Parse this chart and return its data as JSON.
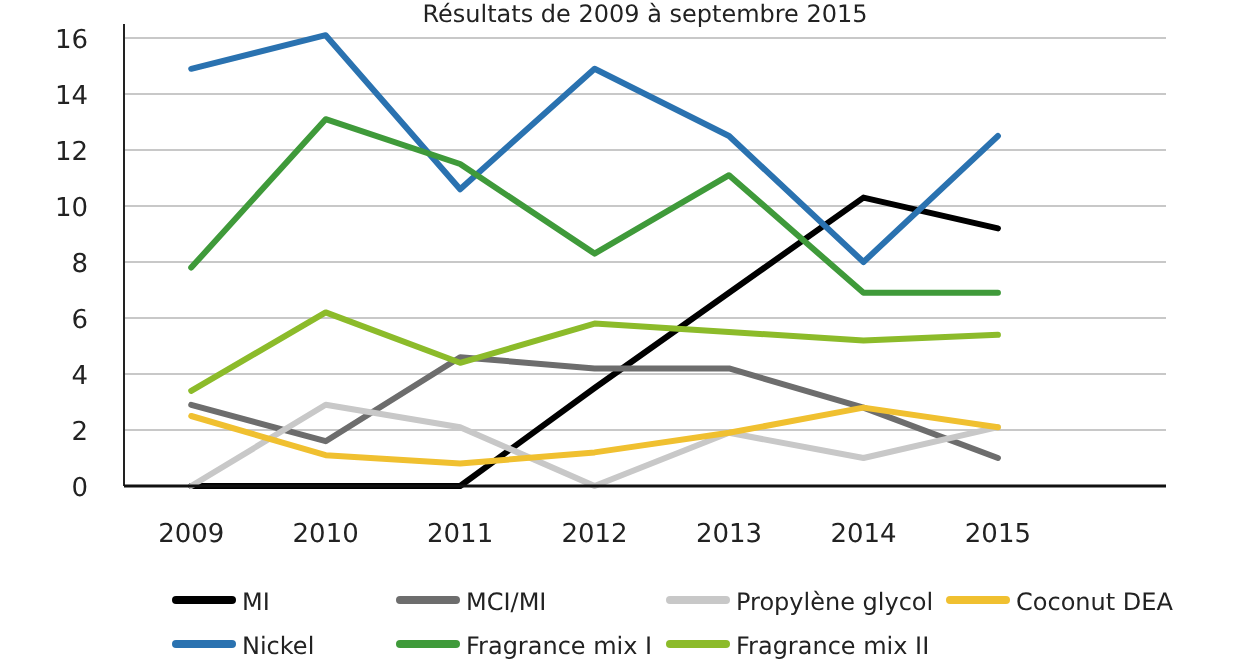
{
  "chart_data": {
    "type": "line",
    "title": "Résultats de 2009 à septembre 2015",
    "categories": [
      "2009",
      "2010",
      "2011",
      "2012",
      "2013",
      "2014",
      "2015"
    ],
    "series": [
      {
        "name": "MI",
        "color": "#000000",
        "values": [
          0,
          0,
          0,
          3.5,
          6.9,
          10.3,
          9.2
        ]
      },
      {
        "name": "MCI/MI",
        "color": "#6d6d6d",
        "values": [
          2.9,
          1.6,
          4.6,
          4.2,
          4.2,
          2.8,
          1.0
        ]
      },
      {
        "name": "Propylène glycol",
        "color": "#c8c8c8",
        "values": [
          0,
          2.9,
          2.1,
          0,
          1.9,
          1.0,
          2.1
        ]
      },
      {
        "name": "Coconut DEA",
        "color": "#f0c030",
        "values": [
          2.5,
          1.1,
          0.8,
          1.2,
          1.9,
          2.8,
          2.1
        ]
      },
      {
        "name": "Nickel",
        "color": "#2a72b0",
        "values": [
          14.9,
          16.1,
          10.6,
          14.9,
          12.5,
          8.0,
          12.5
        ]
      },
      {
        "name": "Fragrance mix I",
        "color": "#3f9a3a",
        "values": [
          7.8,
          13.1,
          11.5,
          8.3,
          11.1,
          6.9,
          6.9
        ]
      },
      {
        "name": "Fragrance mix II",
        "color": "#8cbb2a",
        "values": [
          3.4,
          6.2,
          4.4,
          5.8,
          5.5,
          5.2,
          5.4
        ]
      }
    ],
    "ylim": [
      0,
      16.5
    ],
    "yticks": [
      0,
      2,
      4,
      6,
      8,
      10,
      12,
      14,
      16
    ],
    "grid": "y",
    "legend": "bottom",
    "marker": "none",
    "line_style": "solid"
  }
}
